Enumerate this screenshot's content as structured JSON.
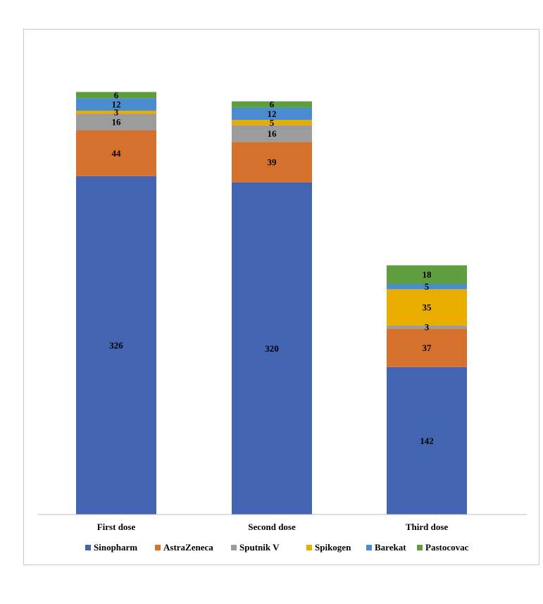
{
  "chart_data": {
    "type": "bar",
    "stacked": true,
    "title": "",
    "xlabel": "",
    "ylabel": "",
    "categories": [
      "First dose",
      "Second dose",
      "Third dose"
    ],
    "series": [
      {
        "name": "Sinopharm",
        "color": "#4264b1",
        "values": [
          326,
          320,
          142
        ]
      },
      {
        "name": "AstraZeneca",
        "color": "#d6702d",
        "values": [
          44,
          39,
          37
        ]
      },
      {
        "name": "Sputnik V",
        "color": "#9c9c9c",
        "values": [
          16,
          16,
          3
        ]
      },
      {
        "name": "Spikogen",
        "color": "#e9ad00",
        "values": [
          3,
          5,
          35
        ]
      },
      {
        "name": "Barekat",
        "color": "#4a8ccf",
        "values": [
          12,
          12,
          5
        ]
      },
      {
        "name": "Pastocovac",
        "color": "#5e9e3e",
        "values": [
          6,
          6,
          18
        ]
      }
    ],
    "ylim": [
      0,
      410
    ],
    "grid": false,
    "legend_position": "bottom"
  }
}
